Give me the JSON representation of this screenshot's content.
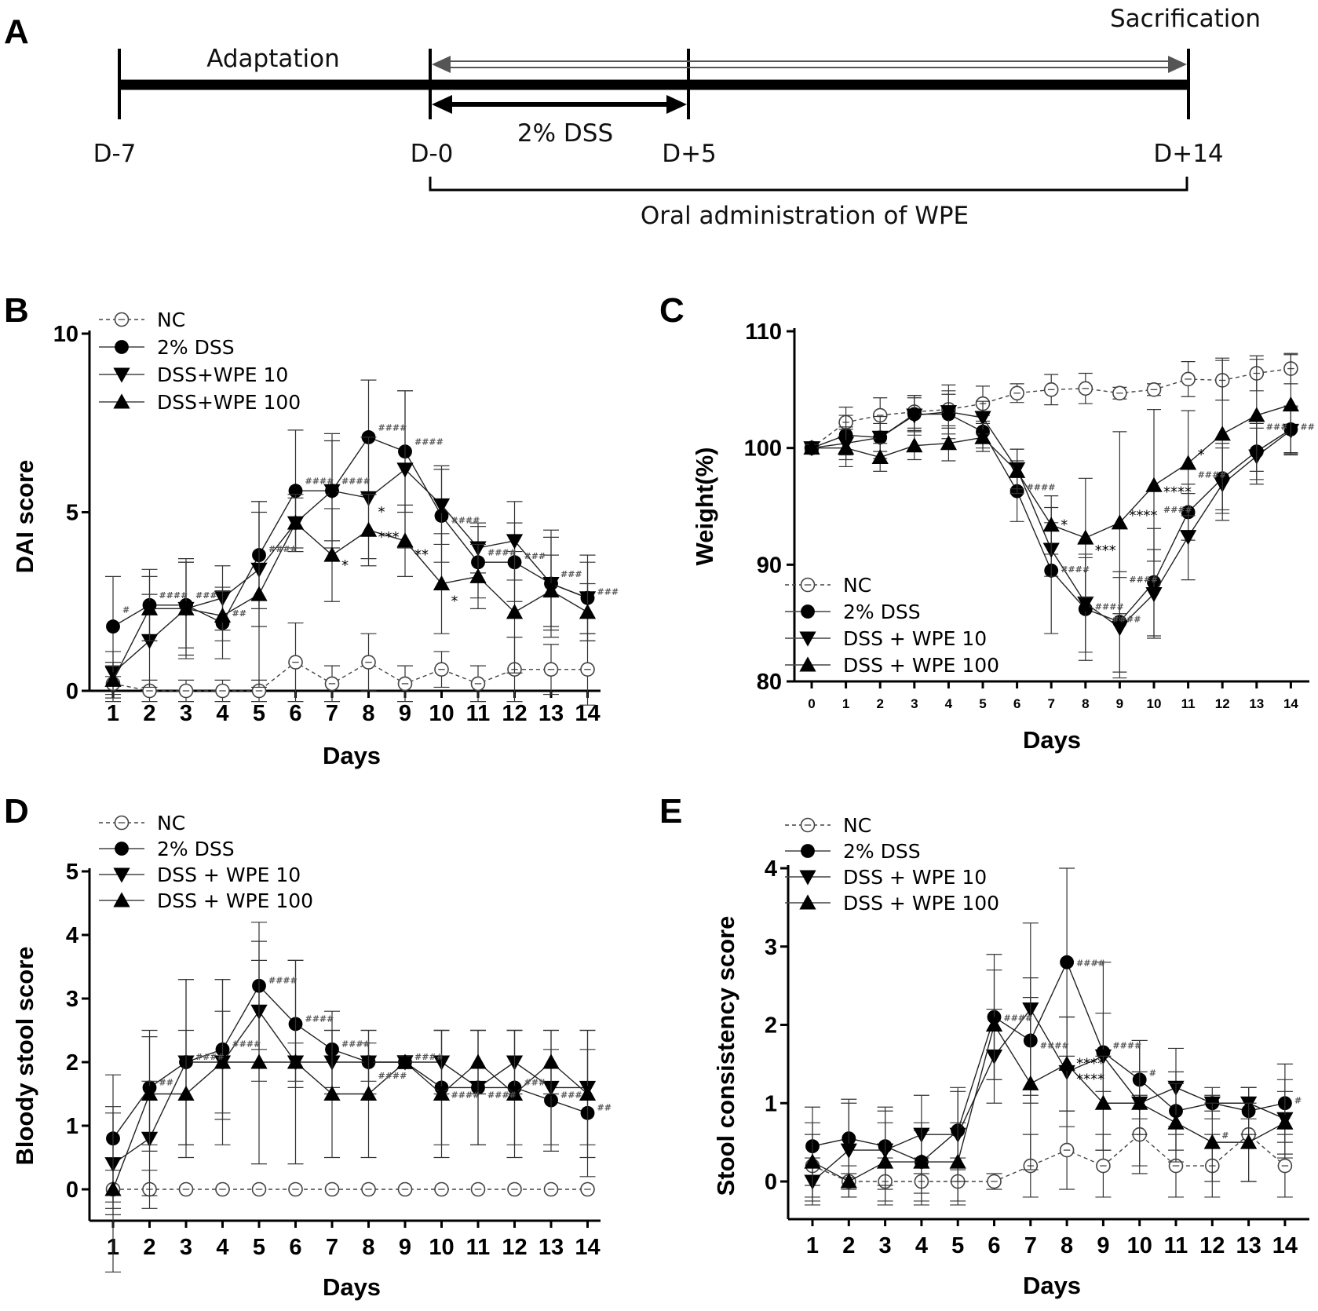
{
  "timeline": {
    "panel_label": "A",
    "top_label": "Sacrification",
    "phase_label": "Adaptation",
    "dss_label": "2% DSS",
    "admin_label": "Oral administration of WPE",
    "day_labels": [
      "D-7",
      "D-0",
      "D+5",
      "D+14"
    ]
  },
  "chart_data": [
    {
      "panel_label": "B",
      "type": "line",
      "xlabel": "Days",
      "ylabel": "DAI score",
      "x": [
        1,
        2,
        3,
        4,
        5,
        6,
        7,
        8,
        9,
        10,
        11,
        12,
        13,
        14
      ],
      "ylim": [
        0,
        10
      ],
      "yticks": [
        0,
        5,
        10
      ],
      "legend": "top-left",
      "series": [
        {
          "name": "NC",
          "values": [
            0.2,
            0,
            0,
            0,
            0,
            0.8,
            0.2,
            0.8,
            0.2,
            0.6,
            0.2,
            0.6,
            0.6,
            0.6
          ],
          "errors": [
            0.5,
            0.3,
            0.3,
            0.3,
            0.3,
            1.1,
            0.5,
            0.8,
            0.5,
            0.5,
            0.5,
            0.9,
            0.7,
            1.0
          ]
        },
        {
          "name": "2% DSS",
          "values": [
            1.8,
            2.4,
            2.4,
            1.9,
            3.8,
            5.6,
            5.6,
            7.1,
            6.7,
            4.9,
            3.6,
            3.6,
            3.0,
            2.6
          ],
          "errors": [
            1.4,
            1.0,
            1.2,
            1.0,
            1.5,
            1.7,
            1.6,
            1.6,
            1.7,
            1.3,
            1.0,
            1.1,
            1.3,
            1.0
          ]
        },
        {
          "name": "DSS+WPE 10",
          "values": [
            0.5,
            1.4,
            2.3,
            2.6,
            3.4,
            4.7,
            5.6,
            5.4,
            6.2,
            5.2,
            4.0,
            4.2,
            3.0,
            2.6
          ],
          "errors": [
            0.6,
            1.3,
            1.3,
            0.9,
            1.6,
            0.8,
            1.4,
            1.7,
            2.2,
            1.1,
            0.7,
            1.1,
            1.5,
            1.2
          ]
        },
        {
          "name": "DSS+WPE 100",
          "values": [
            0.3,
            2.3,
            2.3,
            2.1,
            2.7,
            4.7,
            3.8,
            4.5,
            4.2,
            3.0,
            3.2,
            2.2,
            2.8,
            2.2
          ],
          "errors": [
            0.5,
            0.9,
            1.4,
            0.7,
            2.6,
            0.7,
            1.3,
            1.0,
            1.0,
            1.4,
            0.9,
            1.7,
            1.0,
            0.8
          ]
        }
      ],
      "annotations": [
        {
          "x": 1,
          "y": 2.3,
          "text": "#"
        },
        {
          "x": 2,
          "y": 2.7,
          "text": "####"
        },
        {
          "x": 3,
          "y": 2.7,
          "text": "###"
        },
        {
          "x": 4,
          "y": 2.2,
          "text": "##"
        },
        {
          "x": 5,
          "y": 4.0,
          "text": "####"
        },
        {
          "x": 6,
          "y": 5.9,
          "text": "####"
        },
        {
          "x": 7,
          "y": 5.9,
          "text": "####"
        },
        {
          "x": 8,
          "y": 7.4,
          "text": "####"
        },
        {
          "x": 9,
          "y": 7.0,
          "text": "####"
        },
        {
          "x": 10,
          "y": 4.8,
          "text": "####"
        },
        {
          "x": 11,
          "y": 3.9,
          "text": "####"
        },
        {
          "x": 12,
          "y": 3.8,
          "text": "###"
        },
        {
          "x": 13,
          "y": 3.3,
          "text": "###"
        },
        {
          "x": 14,
          "y": 2.8,
          "text": "###"
        },
        {
          "x": 7,
          "y": 3.6,
          "text": "*"
        },
        {
          "x": 8,
          "y": 5.1,
          "text": "*"
        },
        {
          "x": 8,
          "y": 4.4,
          "text": "***"
        },
        {
          "x": 9,
          "y": 3.9,
          "text": "**"
        },
        {
          "x": 10,
          "y": 2.6,
          "text": "*"
        }
      ]
    },
    {
      "panel_label": "C",
      "type": "line",
      "xlabel": "Days",
      "ylabel": "Weight(%)",
      "x": [
        0,
        1,
        2,
        3,
        4,
        5,
        6,
        7,
        8,
        9,
        10,
        11,
        12,
        13,
        14
      ],
      "ylim": [
        75,
        110
      ],
      "yticks": [
        80,
        90,
        100,
        110
      ],
      "legend": "bottom-left",
      "series": [
        {
          "name": "NC",
          "values": [
            100,
            102.2,
            102.8,
            103.1,
            103.3,
            103.8,
            104.7,
            105.0,
            105.1,
            104.7,
            105.0,
            105.9,
            105.8,
            106.4,
            106.8
          ],
          "errors": [
            0.3,
            1.3,
            1.5,
            1.4,
            1.6,
            1.5,
            0.8,
            1.3,
            1.3,
            0.5,
            0.5,
            1.5,
            1.7,
            1.5,
            1.3
          ]
        },
        {
          "name": "2% DSS",
          "values": [
            100,
            101.1,
            100.9,
            102.9,
            102.9,
            101.4,
            96.3,
            89.5,
            86.2,
            85.1,
            88.5,
            94.5,
            97.4,
            99.7,
            101.6
          ],
          "errors": [
            0.3,
            1.7,
            1.2,
            1.4,
            1.7,
            1.4,
            2.6,
            5.4,
            4.4,
            4.3,
            4.6,
            2.4,
            3.0,
            2.4,
            2.0
          ]
        },
        {
          "name": "DSS + WPE 10",
          "values": [
            100,
            100.4,
            100.9,
            102.8,
            103.1,
            102.6,
            98.2,
            91.3,
            86.7,
            84.6,
            87.5,
            92.4,
            96.9,
            99.3,
            101.5
          ],
          "errors": [
            0.3,
            1.4,
            1.8,
            1.7,
            2.3,
            1.4,
            1.7,
            2.3,
            4.2,
            4.3,
            3.8,
            3.7,
            3.1,
            2.4,
            2.0
          ]
        },
        {
          "name": "DSS + WPE 100",
          "values": [
            100,
            100.0,
            99.2,
            100.2,
            100.4,
            100.9,
            98.0,
            93.4,
            92.3,
            93.6,
            96.8,
            98.7,
            101.2,
            102.8,
            103.7
          ],
          "errors": [
            0.3,
            1.6,
            1.2,
            1.2,
            1.5,
            1.2,
            1.9,
            2.5,
            5.1,
            7.8,
            6.5,
            4.5,
            6.5,
            4.8,
            4.3
          ]
        }
      ],
      "annotations": [
        {
          "x": 6,
          "y": 96.7,
          "text": "####"
        },
        {
          "x": 7,
          "y": 89.7,
          "text": "####"
        },
        {
          "x": 8,
          "y": 86.5,
          "text": "####"
        },
        {
          "x": 8.5,
          "y": 85.4,
          "text": "####"
        },
        {
          "x": 9,
          "y": 88.8,
          "text": "####"
        },
        {
          "x": 10,
          "y": 94.8,
          "text": "####"
        },
        {
          "x": 11,
          "y": 97.8,
          "text": "####"
        },
        {
          "x": 13,
          "y": 101.9,
          "text": "###"
        },
        {
          "x": 14,
          "y": 101.9,
          "text": "##"
        },
        {
          "x": 7,
          "y": 93.7,
          "text": "*"
        },
        {
          "x": 8,
          "y": 91.5,
          "text": "***"
        },
        {
          "x": 9,
          "y": 94.5,
          "text": "****"
        },
        {
          "x": 10,
          "y": 96.5,
          "text": "****"
        },
        {
          "x": 11,
          "y": 99.7,
          "text": "*"
        }
      ]
    },
    {
      "panel_label": "D",
      "type": "line",
      "xlabel": "Days",
      "ylabel": "Bloody stool score",
      "x": [
        1,
        2,
        3,
        4,
        5,
        6,
        7,
        8,
        9,
        10,
        11,
        12,
        13,
        14
      ],
      "ylim": [
        -0.5,
        5
      ],
      "yticks": [
        0,
        1,
        2,
        3,
        4,
        5
      ],
      "legend": "top-left",
      "series": [
        {
          "name": "NC",
          "values": [
            0,
            0,
            0,
            0,
            0,
            0,
            0,
            0,
            0,
            0,
            0,
            0,
            0,
            0
          ],
          "errors": [
            0.3,
            0.3,
            0,
            0,
            0,
            0,
            0,
            0,
            0,
            0,
            0,
            0,
            0,
            0
          ]
        },
        {
          "name": "2% DSS",
          "values": [
            0.8,
            1.6,
            2.0,
            2.2,
            3.2,
            2.6,
            2.2,
            2.0,
            2.0,
            1.6,
            1.6,
            1.6,
            1.4,
            1.2
          ],
          "errors": [
            1.0,
            0.9,
            1.3,
            1.1,
            1.0,
            1.0,
            0.6,
            0.3,
            0.1,
            0.9,
            0.9,
            0.9,
            0.8,
            1.0
          ]
        },
        {
          "name": "DSS + WPE 10",
          "values": [
            0.4,
            0.8,
            2.0,
            2.0,
            2.8,
            2.0,
            2.0,
            2.0,
            2.0,
            2.0,
            1.6,
            2.0,
            1.6,
            1.6
          ],
          "errors": [
            0.8,
            0.9,
            1.3,
            0.8,
            1.1,
            0.3,
            0.5,
            0.5,
            0.1,
            0.5,
            0.9,
            0.5,
            0.9,
            0.9
          ]
        },
        {
          "name": "DSS + WPE 100",
          "values": [
            0,
            1.5,
            1.5,
            2.0,
            2.0,
            2.0,
            1.5,
            1.5,
            2.0,
            1.5,
            2.0,
            1.5,
            2.0,
            1.5
          ],
          "errors": [
            1.3,
            0.9,
            1.0,
            1.3,
            1.6,
            1.6,
            1.0,
            1.0,
            0.1,
            1.0,
            0.5,
            1.0,
            0.5,
            1.0
          ]
        }
      ],
      "annotations": [
        {
          "x": 2,
          "y": 1.7,
          "text": "##"
        },
        {
          "x": 3,
          "y": 2.1,
          "text": "####"
        },
        {
          "x": 4,
          "y": 2.3,
          "text": "####"
        },
        {
          "x": 5,
          "y": 3.3,
          "text": "####"
        },
        {
          "x": 6,
          "y": 2.7,
          "text": "####"
        },
        {
          "x": 7,
          "y": 2.3,
          "text": "####"
        },
        {
          "x": 8,
          "y": 1.8,
          "text": "####"
        },
        {
          "x": 9,
          "y": 2.1,
          "text": "####"
        },
        {
          "x": 10,
          "y": 1.5,
          "text": "####"
        },
        {
          "x": 11,
          "y": 1.5,
          "text": "####"
        },
        {
          "x": 12,
          "y": 1.7,
          "text": "###"
        },
        {
          "x": 13,
          "y": 1.5,
          "text": "###"
        },
        {
          "x": 14,
          "y": 1.3,
          "text": "##"
        }
      ]
    },
    {
      "panel_label": "E",
      "type": "line",
      "xlabel": "Days",
      "ylabel": "Stool consistency score",
      "x": [
        1,
        2,
        3,
        4,
        5,
        6,
        7,
        8,
        9,
        10,
        11,
        12,
        13,
        14
      ],
      "ylim": [
        -0.4,
        4
      ],
      "yticks": [
        0,
        1,
        2,
        3,
        4
      ],
      "legend": "top-left",
      "series": [
        {
          "name": "NC",
          "values": [
            0.2,
            0,
            0,
            0,
            0,
            0,
            0.2,
            0.4,
            0.2,
            0.6,
            0.2,
            0.2,
            0.6,
            0.2
          ],
          "errors": [
            0.4,
            0.2,
            0.3,
            0.3,
            0.3,
            0.1,
            0.4,
            0.5,
            0.4,
            0.5,
            0.4,
            0.4,
            0.6,
            0.4
          ]
        },
        {
          "name": "2% DSS",
          "values": [
            0.45,
            0.55,
            0.45,
            0.25,
            0.65,
            2.1,
            1.8,
            2.8,
            1.65,
            1.3,
            0.9,
            1.0,
            0.9,
            1.0
          ],
          "errors": [
            0.5,
            0.5,
            0.5,
            0.4,
            0.5,
            0.8,
            0.8,
            1.2,
            0.5,
            0.5,
            0.5,
            0.1,
            0.3,
            0.5
          ]
        },
        {
          "name": "DSS + WPE 10",
          "values": [
            0,
            0.4,
            0.4,
            0.6,
            0.6,
            1.6,
            2.2,
            1.4,
            1.6,
            1.0,
            1.2,
            1.0,
            1.0,
            0.8
          ],
          "errors": [
            0.3,
            0.6,
            0.5,
            0.5,
            0.6,
            0.6,
            1.1,
            0.7,
            1.2,
            0.8,
            0.5,
            0.2,
            0.2,
            0.5
          ]
        },
        {
          "name": "DSS + WPE 100",
          "values": [
            0.25,
            0,
            0.25,
            0.25,
            0.25,
            2.0,
            1.25,
            1.5,
            1.0,
            1.0,
            0.75,
            0.5,
            0.5,
            0.75
          ],
          "errors": [
            0.5,
            0.1,
            0.5,
            0.5,
            0.5,
            0.7,
            1.1,
            0.6,
            0.6,
            0.4,
            0.5,
            0.5,
            0.5,
            0.4
          ]
        }
      ],
      "annotations": [
        {
          "x": 6,
          "y": 2.1,
          "text": "####"
        },
        {
          "x": 7,
          "y": 1.75,
          "text": "####"
        },
        {
          "x": 8,
          "y": 2.8,
          "text": "####"
        },
        {
          "x": 9,
          "y": 1.75,
          "text": "####"
        },
        {
          "x": 10,
          "y": 1.4,
          "text": "#"
        },
        {
          "x": 12,
          "y": 0.6,
          "text": "#"
        },
        {
          "x": 14,
          "y": 1.05,
          "text": "#"
        },
        {
          "x": 8,
          "y": 1.55,
          "text": "****"
        },
        {
          "x": 8,
          "y": 1.35,
          "text": "****"
        }
      ]
    }
  ]
}
